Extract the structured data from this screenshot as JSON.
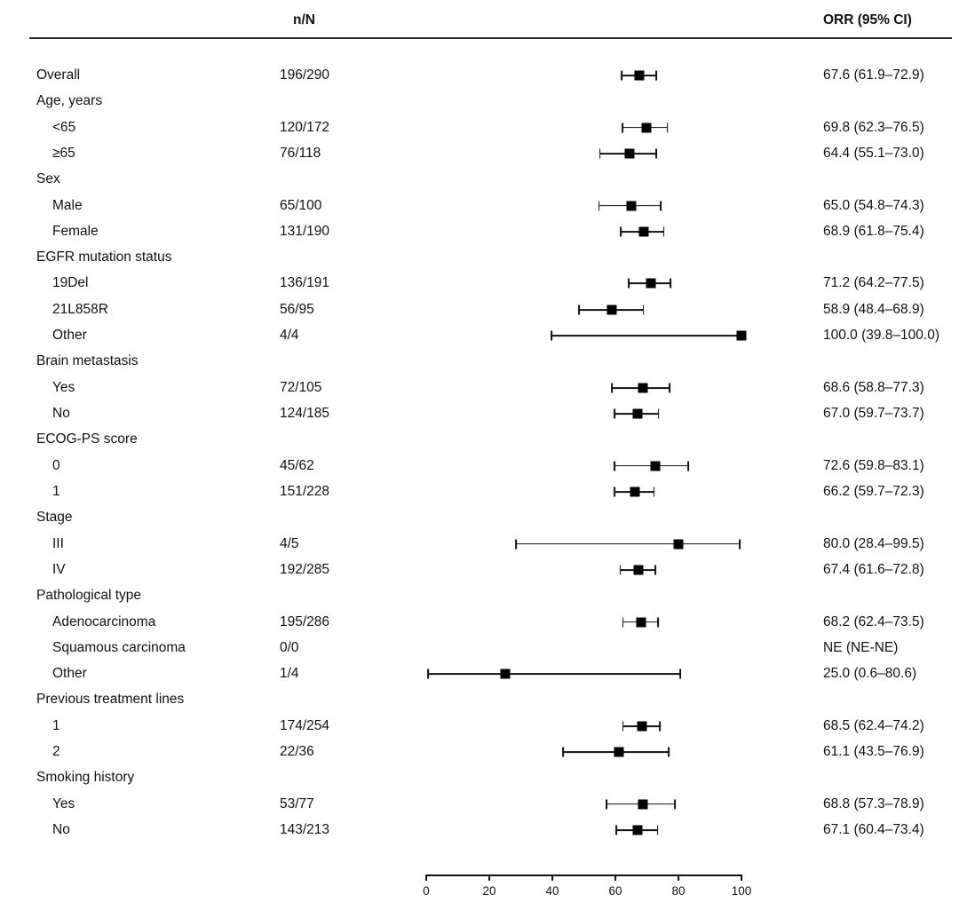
{
  "chart_data": {
    "type": "forest",
    "title": "",
    "columns_labels": {
      "nN": "n/N",
      "orr": "ORR (95% CI)"
    },
    "axis": {
      "min": 0,
      "max": 100,
      "ticks": [
        0,
        20,
        40,
        60,
        80,
        100
      ]
    },
    "legend": null,
    "grid": false,
    "rows": [
      {
        "label": "Overall",
        "indent": 0,
        "nN": "196/290",
        "orr": "67.6 (61.9–72.9)",
        "est": 67.6,
        "lo": 61.9,
        "hi": 72.9
      },
      {
        "label": "Age, years",
        "indent": 0,
        "nN": null,
        "orr": null,
        "est": null,
        "lo": null,
        "hi": null
      },
      {
        "label": "<65",
        "indent": 1,
        "nN": "120/172",
        "orr": "69.8 (62.3–76.5)",
        "est": 69.8,
        "lo": 62.3,
        "hi": 76.5
      },
      {
        "label": "≥65",
        "indent": 1,
        "nN": "76/118",
        "orr": "64.4 (55.1–73.0)",
        "est": 64.4,
        "lo": 55.1,
        "hi": 73.0
      },
      {
        "label": "Sex",
        "indent": 0,
        "nN": null,
        "orr": null,
        "est": null,
        "lo": null,
        "hi": null
      },
      {
        "label": "Male",
        "indent": 1,
        "nN": "65/100",
        "orr": "65.0 (54.8–74.3)",
        "est": 65.0,
        "lo": 54.8,
        "hi": 74.3
      },
      {
        "label": "Female",
        "indent": 1,
        "nN": "131/190",
        "orr": "68.9 (61.8–75.4)",
        "est": 68.9,
        "lo": 61.8,
        "hi": 75.4
      },
      {
        "label": "EGFR mutation status",
        "indent": 0,
        "nN": null,
        "orr": null,
        "est": null,
        "lo": null,
        "hi": null
      },
      {
        "label": "19Del",
        "indent": 1,
        "nN": "136/191",
        "orr": "71.2 (64.2–77.5)",
        "est": 71.2,
        "lo": 64.2,
        "hi": 77.5
      },
      {
        "label": "21L858R",
        "indent": 1,
        "nN": "56/95",
        "orr": "58.9 (48.4–68.9)",
        "est": 58.9,
        "lo": 48.4,
        "hi": 68.9
      },
      {
        "label": "Other",
        "indent": 1,
        "nN": "4/4",
        "orr": "100.0 (39.8–100.0)",
        "est": 100.0,
        "lo": 39.8,
        "hi": 100.0
      },
      {
        "label": "Brain metastasis",
        "indent": 0,
        "nN": null,
        "orr": null,
        "est": null,
        "lo": null,
        "hi": null
      },
      {
        "label": "Yes",
        "indent": 1,
        "nN": "72/105",
        "orr": "68.6 (58.8–77.3)",
        "est": 68.6,
        "lo": 58.8,
        "hi": 77.3
      },
      {
        "label": "No",
        "indent": 1,
        "nN": "124/185",
        "orr": "67.0 (59.7–73.7)",
        "est": 67.0,
        "lo": 59.7,
        "hi": 73.7
      },
      {
        "label": "ECOG-PS score",
        "indent": 0,
        "nN": null,
        "orr": null,
        "est": null,
        "lo": null,
        "hi": null
      },
      {
        "label": "0",
        "indent": 1,
        "nN": "45/62",
        "orr": "72.6 (59.8–83.1)",
        "est": 72.6,
        "lo": 59.8,
        "hi": 83.1
      },
      {
        "label": "1",
        "indent": 1,
        "nN": "151/228",
        "orr": "66.2 (59.7–72.3)",
        "est": 66.2,
        "lo": 59.7,
        "hi": 72.3
      },
      {
        "label": "Stage",
        "indent": 0,
        "nN": null,
        "orr": null,
        "est": null,
        "lo": null,
        "hi": null
      },
      {
        "label": "III",
        "indent": 1,
        "nN": "4/5",
        "orr": "80.0 (28.4–99.5)",
        "est": 80.0,
        "lo": 28.4,
        "hi": 99.5
      },
      {
        "label": "IV",
        "indent": 1,
        "nN": "192/285",
        "orr": "67.4 (61.6–72.8)",
        "est": 67.4,
        "lo": 61.6,
        "hi": 72.8
      },
      {
        "label": "Pathological type",
        "indent": 0,
        "nN": null,
        "orr": null,
        "est": null,
        "lo": null,
        "hi": null
      },
      {
        "label": "Adenocarcinoma",
        "indent": 1,
        "nN": "195/286",
        "orr": "68.2 (62.4–73.5)",
        "est": 68.2,
        "lo": 62.4,
        "hi": 73.5
      },
      {
        "label": "Squamous carcinoma",
        "indent": 1,
        "nN": "0/0",
        "orr": "NE (NE-NE)",
        "est": null,
        "lo": null,
        "hi": null
      },
      {
        "label": "Other",
        "indent": 1,
        "nN": "1/4",
        "orr": "25.0 (0.6–80.6)",
        "est": 25.0,
        "lo": 0.6,
        "hi": 80.6
      },
      {
        "label": "Previous treatment lines",
        "indent": 0,
        "nN": null,
        "orr": null,
        "est": null,
        "lo": null,
        "hi": null
      },
      {
        "label": "1",
        "indent": 1,
        "nN": "174/254",
        "orr": "68.5 (62.4–74.2)",
        "est": 68.5,
        "lo": 62.4,
        "hi": 74.2
      },
      {
        "label": "2",
        "indent": 1,
        "nN": "22/36",
        "orr": "61.1 (43.5–76.9)",
        "est": 61.1,
        "lo": 43.5,
        "hi": 76.9
      },
      {
        "label": "Smoking history",
        "indent": 0,
        "nN": null,
        "orr": null,
        "est": null,
        "lo": null,
        "hi": null
      },
      {
        "label": "Yes",
        "indent": 1,
        "nN": "53/77",
        "orr": "68.8 (57.3–78.9)",
        "est": 68.8,
        "lo": 57.3,
        "hi": 78.9
      },
      {
        "label": "No",
        "indent": 1,
        "nN": "143/213",
        "orr": "67.1 (60.4–73.4)",
        "est": 67.1,
        "lo": 60.4,
        "hi": 73.4
      }
    ]
  },
  "colors": {
    "marker": "#000000",
    "line": "#111111",
    "text": "#111111",
    "background": "#ffffff"
  }
}
